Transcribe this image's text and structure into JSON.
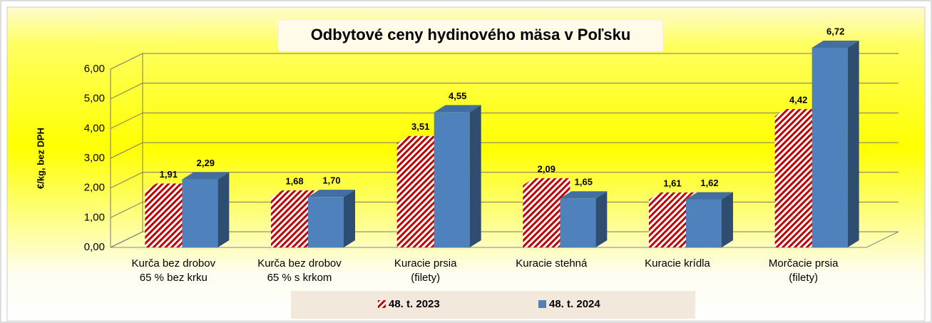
{
  "chart_data": {
    "type": "bar3d",
    "title": "Odbytové ceny hydinového mäsa v Poľsku",
    "ylabel": "€/kg, bez DPH",
    "categories": [
      "Kurča bez drobov\n65 % bez krku",
      "Kurča bez drobov\n65 % s krkom",
      "Kuracie prsia\n(filety)",
      "Kuracie stehná",
      "Kuracie krídla",
      "Morčacie prsia\n(filety)"
    ],
    "series": [
      {
        "name": "48. t. 2023",
        "color": "#c00000",
        "values": [
          1.91,
          1.68,
          3.51,
          2.09,
          1.61,
          4.42
        ],
        "value_labels": [
          "1,91",
          "1,68",
          "3,51",
          "2,09",
          "1,61",
          "4,42"
        ]
      },
      {
        "name": "48. t. 2024",
        "color": "#4f81bd",
        "values": [
          2.29,
          1.7,
          4.55,
          1.65,
          1.62,
          6.72
        ],
        "value_labels": [
          "2,29",
          "1,70",
          "4,55",
          "1,65",
          "1,62",
          "6,72"
        ]
      }
    ],
    "ylim": [
      0,
      6
    ],
    "yticks": [
      {
        "value": 0,
        "label": "0,00"
      },
      {
        "value": 1,
        "label": "1,00"
      },
      {
        "value": 2,
        "label": "2,00"
      },
      {
        "value": 3,
        "label": "3,00"
      },
      {
        "value": 4,
        "label": "4,00"
      },
      {
        "value": 5,
        "label": "5,00"
      },
      {
        "value": 6,
        "label": "6,00"
      }
    ],
    "grid": true,
    "legend": "bottom"
  }
}
